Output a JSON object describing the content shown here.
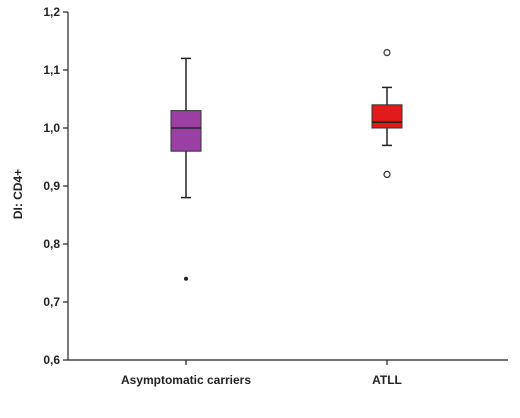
{
  "chart_data": {
    "type": "boxplot",
    "ylabel": "DI: CD4+",
    "ylim": [
      0.6,
      1.2
    ],
    "yticks": [
      0.6,
      0.7,
      0.8,
      0.9,
      1.0,
      1.1,
      1.2
    ],
    "ytick_labels": [
      "0,6",
      "0,7",
      "0,8",
      "0,9",
      "1,0",
      "1,1",
      "1,2"
    ],
    "categories": [
      "Asymptomatic carriers",
      "ATLL"
    ],
    "grid": false,
    "series": [
      {
        "category": "Asymptomatic carriers",
        "color": "#9b3fa4",
        "whisker_low": 0.88,
        "q1": 0.96,
        "median": 1.0,
        "q3": 1.03,
        "whisker_high": 1.12,
        "outliers": [],
        "extremes": [
          0.74
        ]
      },
      {
        "category": "ATLL",
        "color": "#e31a1c",
        "whisker_low": 0.97,
        "q1": 1.0,
        "median": 1.01,
        "q3": 1.04,
        "whisker_high": 1.07,
        "outliers": [
          0.92,
          1.13
        ],
        "extremes": []
      }
    ]
  }
}
